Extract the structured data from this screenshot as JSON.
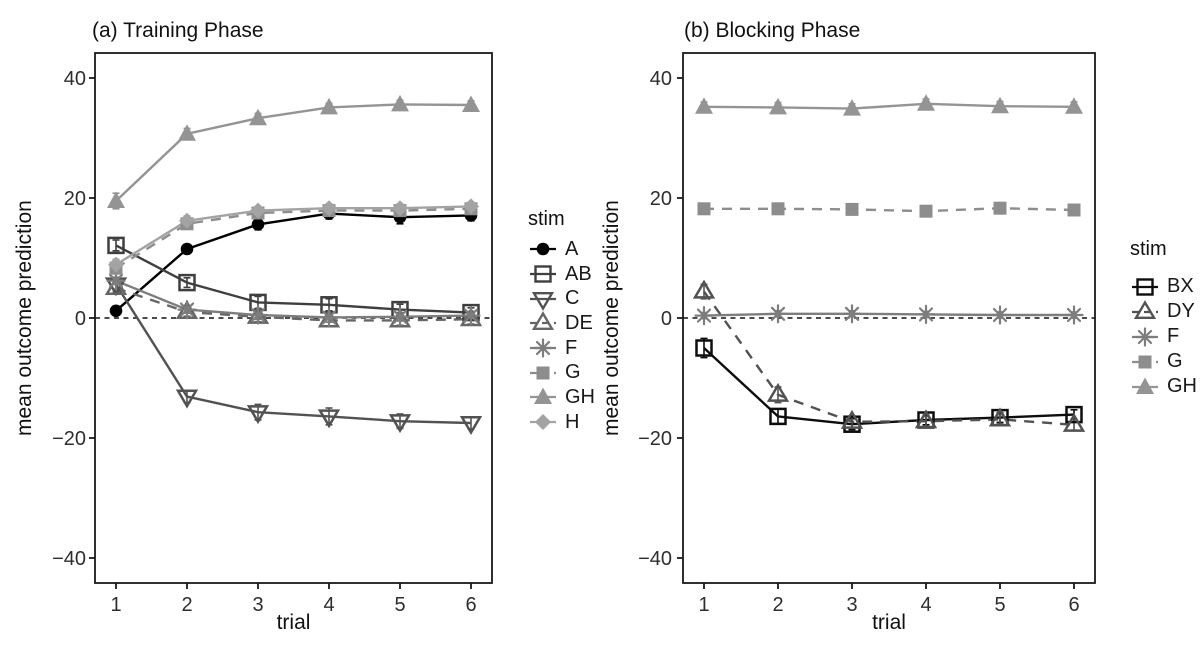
{
  "figure": {
    "background": "#ffffff",
    "axis_color": "#1a1a1a",
    "tick_label_color": "#2e2e2e",
    "zero_line_color": "#111111"
  },
  "chart_data": [
    {
      "type": "line",
      "panel": "a",
      "title": "(a) Training Phase",
      "xlabel": "trial",
      "ylabel": "mean outcome prediction",
      "legend_title": "stim",
      "legend_position": "right",
      "grid": false,
      "zero_line": true,
      "x": [
        1,
        2,
        3,
        4,
        5,
        6
      ],
      "xtick_labels": [
        "1",
        "2",
        "3",
        "4",
        "5",
        "6"
      ],
      "yticks": [
        40,
        20,
        0,
        -20,
        -40
      ],
      "ytick_labels": [
        "40",
        "20",
        "0",
        "−20",
        "−40"
      ],
      "ylim": [
        -44,
        44
      ],
      "series": [
        {
          "name": "A",
          "marker": "circle-filled",
          "line": "solid",
          "color": "#000000",
          "values": [
            1.2,
            11.5,
            15.6,
            17.4,
            16.8,
            17.1
          ],
          "se": [
            0.4,
            0.7,
            0.9,
            0.9,
            1.1,
            0.9
          ]
        },
        {
          "name": "AB",
          "marker": "square-open",
          "line": "solid",
          "color": "#3f3f3f",
          "values": [
            12.1,
            5.9,
            2.6,
            2.2,
            1.4,
            0.9
          ],
          "se": [
            0.9,
            0.8,
            1.0,
            1.0,
            0.9,
            0.8
          ]
        },
        {
          "name": "C",
          "marker": "triangle-down-open",
          "line": "solid",
          "color": "#525252",
          "values": [
            5.6,
            -13.1,
            -15.7,
            -16.4,
            -17.2,
            -17.5
          ],
          "se": [
            0.8,
            1.0,
            1.3,
            1.4,
            1.2,
            1.0
          ]
        },
        {
          "name": "DE",
          "marker": "triangle-up-open",
          "line": "dashed",
          "color": "#666666",
          "values": [
            5.0,
            1.0,
            0.2,
            -0.4,
            -0.4,
            -0.2
          ],
          "se": [
            0.7,
            0.7,
            0.8,
            0.9,
            0.8,
            0.8
          ]
        },
        {
          "name": "F",
          "marker": "asterisk",
          "line": "solid",
          "color": "#7d7d7d",
          "values": [
            6.2,
            1.4,
            0.5,
            0.1,
            0.2,
            0.4
          ],
          "se": [
            0.6,
            0.6,
            0.7,
            0.8,
            0.7,
            0.7
          ]
        },
        {
          "name": "G",
          "marker": "square-filled",
          "line": "dashed",
          "color": "#8d8d8d",
          "values": [
            8.3,
            15.7,
            17.5,
            17.9,
            17.9,
            18.2
          ],
          "se": [
            0.9,
            0.8,
            0.7,
            0.7,
            0.7,
            0.7
          ]
        },
        {
          "name": "GH",
          "marker": "triangle-up-filled",
          "line": "solid",
          "color": "#949494",
          "values": [
            19.5,
            30.7,
            33.3,
            35.1,
            35.6,
            35.5
          ],
          "se": [
            1.3,
            0.9,
            0.8,
            0.7,
            0.7,
            0.7
          ]
        },
        {
          "name": "H",
          "marker": "diamond-filled",
          "line": "solid",
          "color": "#a3a3a3",
          "values": [
            8.9,
            16.2,
            17.9,
            18.3,
            18.3,
            18.6
          ],
          "se": [
            0.9,
            0.8,
            0.7,
            0.7,
            0.7,
            0.7
          ]
        }
      ]
    },
    {
      "type": "line",
      "panel": "b",
      "title": "(b) Blocking Phase",
      "xlabel": "trial",
      "ylabel": "mean outcome prediction",
      "legend_title": "stim",
      "legend_position": "right",
      "grid": false,
      "zero_line": true,
      "x": [
        1,
        2,
        3,
        4,
        5,
        6
      ],
      "xtick_labels": [
        "1",
        "2",
        "3",
        "4",
        "5",
        "6"
      ],
      "yticks": [
        40,
        20,
        0,
        -20,
        -40
      ],
      "ytick_labels": [
        "40",
        "20",
        "0",
        "−20",
        "−40"
      ],
      "ylim": [
        -44,
        44
      ],
      "series": [
        {
          "name": "BX",
          "marker": "square-open",
          "line": "solid",
          "color": "#0d0d0d",
          "values": [
            -5.0,
            -16.4,
            -17.7,
            -17.0,
            -16.6,
            -16.1
          ],
          "se": [
            1.6,
            1.2,
            0.9,
            0.8,
            0.8,
            0.8
          ]
        },
        {
          "name": "DY",
          "marker": "triangle-up-open",
          "line": "dashed",
          "color": "#525252",
          "values": [
            4.4,
            -12.8,
            -17.3,
            -17.2,
            -16.9,
            -17.8
          ],
          "se": [
            1.2,
            1.3,
            1.0,
            0.8,
            0.8,
            0.9
          ]
        },
        {
          "name": "F",
          "marker": "asterisk",
          "line": "solid",
          "color": "#7d7d7d",
          "values": [
            0.4,
            0.7,
            0.7,
            0.6,
            0.5,
            0.5
          ],
          "se": [
            0.5,
            0.5,
            0.5,
            0.5,
            0.5,
            0.5
          ]
        },
        {
          "name": "G",
          "marker": "square-filled",
          "line": "dashed",
          "color": "#8d8d8d",
          "values": [
            18.2,
            18.2,
            18.1,
            17.8,
            18.3,
            18.0
          ],
          "se": [
            0.7,
            0.7,
            0.7,
            0.7,
            0.7,
            0.7
          ]
        },
        {
          "name": "GH",
          "marker": "triangle-up-filled",
          "line": "solid",
          "color": "#949494",
          "values": [
            35.2,
            35.1,
            34.9,
            35.7,
            35.3,
            35.2
          ],
          "se": [
            0.8,
            0.8,
            0.8,
            0.8,
            0.8,
            0.8
          ]
        }
      ]
    }
  ]
}
